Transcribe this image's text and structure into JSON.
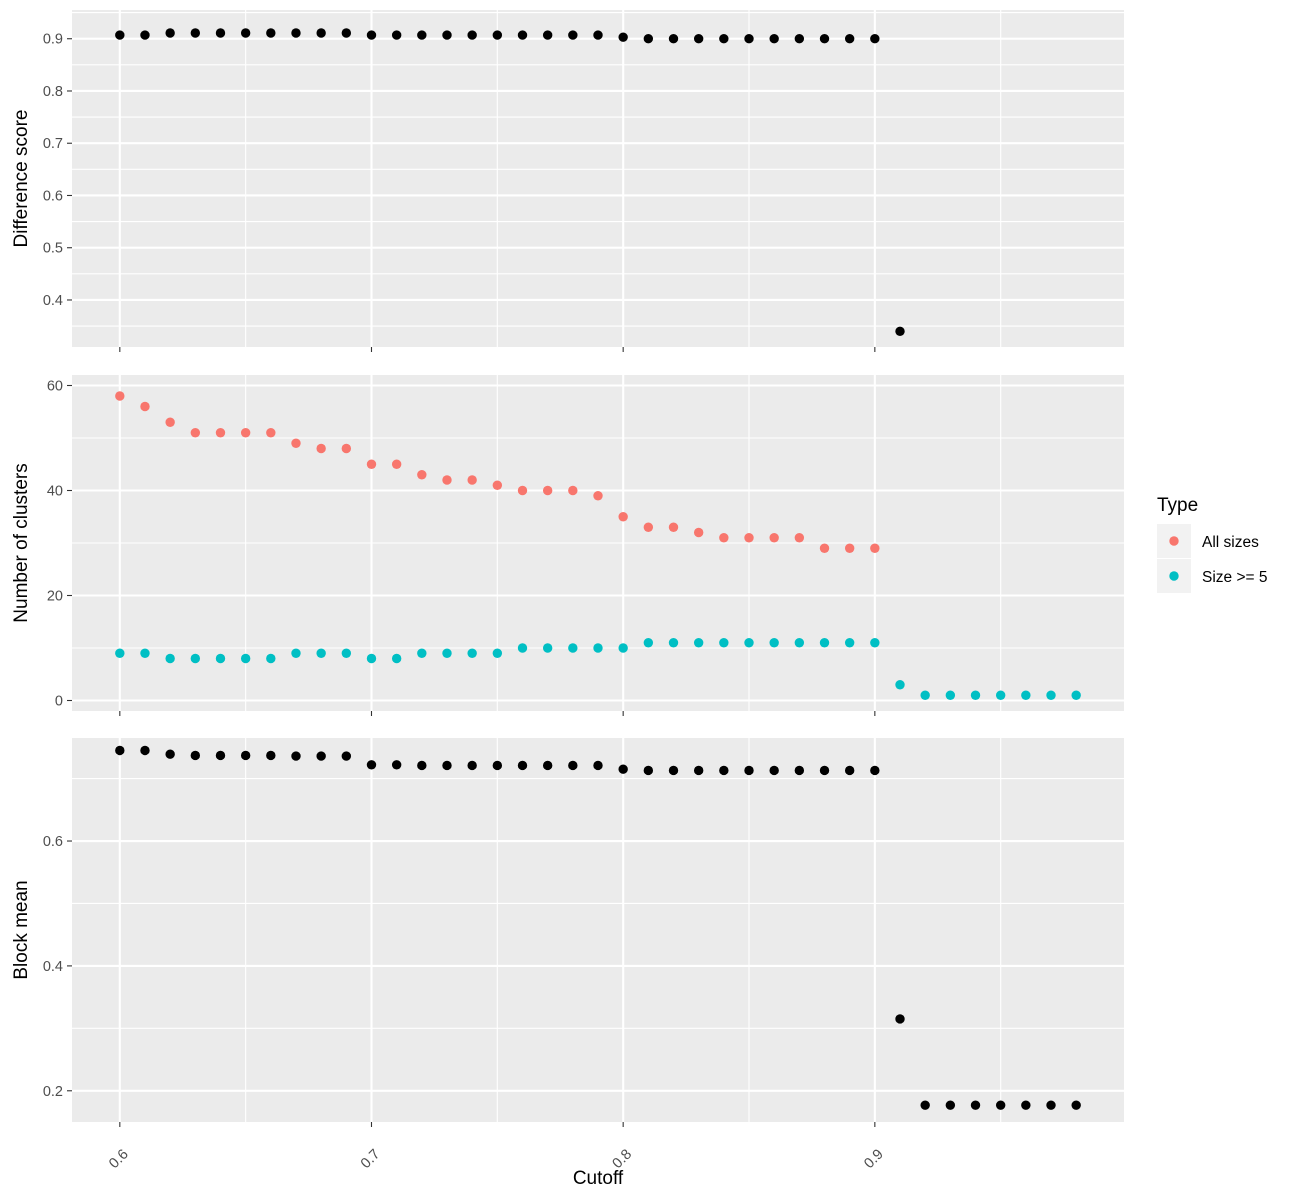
{
  "chart_data": {
    "type": "scatter",
    "layout": "three vertically stacked panels sharing the x axis",
    "xlabel": "Cutoff",
    "x_ticks": [
      "0.6",
      "0.7",
      "0.8",
      "0.9"
    ],
    "xlim": [
      0.581,
      0.999
    ],
    "grid": true,
    "background": "#ebebeb",
    "legend": {
      "title": "Type",
      "placement": "right",
      "entries": [
        {
          "label": "All sizes",
          "color": "#f8766d"
        },
        {
          "label": "Size >= 5",
          "color": "#00bfc4"
        }
      ]
    },
    "panels": [
      {
        "ylabel": "Difference score",
        "ylim": [
          0.31,
          0.955
        ],
        "y_ticks": [
          "0.4",
          "0.5",
          "0.6",
          "0.7",
          "0.8",
          "0.9"
        ],
        "series": [
          {
            "color": "#000000",
            "x": [
              0.6,
              0.61,
              0.62,
              0.63,
              0.64,
              0.65,
              0.66,
              0.67,
              0.68,
              0.69,
              0.7,
              0.71,
              0.72,
              0.73,
              0.74,
              0.75,
              0.76,
              0.77,
              0.78,
              0.79,
              0.8,
              0.81,
              0.82,
              0.83,
              0.84,
              0.85,
              0.86,
              0.87,
              0.88,
              0.89,
              0.9,
              0.91
            ],
            "y": [
              0.907,
              0.907,
              0.911,
              0.911,
              0.911,
              0.911,
              0.911,
              0.911,
              0.911,
              0.911,
              0.907,
              0.907,
              0.907,
              0.907,
              0.907,
              0.907,
              0.907,
              0.907,
              0.907,
              0.907,
              0.903,
              0.9,
              0.9,
              0.9,
              0.9,
              0.9,
              0.9,
              0.9,
              0.9,
              0.9,
              0.9,
              0.34
            ]
          }
        ]
      },
      {
        "ylabel": "Number of clusters",
        "ylim": [
          -2,
          62
        ],
        "y_ticks": [
          "0",
          "20",
          "40",
          "60"
        ],
        "series": [
          {
            "name": "All sizes",
            "color": "#f8766d",
            "x": [
              0.6,
              0.61,
              0.62,
              0.63,
              0.64,
              0.65,
              0.66,
              0.67,
              0.68,
              0.69,
              0.7,
              0.71,
              0.72,
              0.73,
              0.74,
              0.75,
              0.76,
              0.77,
              0.78,
              0.79,
              0.8,
              0.81,
              0.82,
              0.83,
              0.84,
              0.85,
              0.86,
              0.87,
              0.88,
              0.89,
              0.9
            ],
            "y": [
              58,
              56,
              53,
              51,
              51,
              51,
              51,
              49,
              48,
              48,
              45,
              45,
              43,
              42,
              42,
              41,
              40,
              40,
              40,
              39,
              35,
              33,
              33,
              32,
              31,
              31,
              31,
              31,
              29,
              29,
              29
            ]
          },
          {
            "name": "Size >= 5",
            "color": "#00bfc4",
            "x": [
              0.6,
              0.61,
              0.62,
              0.63,
              0.64,
              0.65,
              0.66,
              0.67,
              0.68,
              0.69,
              0.7,
              0.71,
              0.72,
              0.73,
              0.74,
              0.75,
              0.76,
              0.77,
              0.78,
              0.79,
              0.8,
              0.81,
              0.82,
              0.83,
              0.84,
              0.85,
              0.86,
              0.87,
              0.88,
              0.89,
              0.9,
              0.91,
              0.92,
              0.93,
              0.94,
              0.95,
              0.96,
              0.97,
              0.98
            ],
            "y": [
              9,
              9,
              8,
              8,
              8,
              8,
              8,
              9,
              9,
              9,
              8,
              8,
              9,
              9,
              9,
              9,
              10,
              10,
              10,
              10,
              10,
              11,
              11,
              11,
              11,
              11,
              11,
              11,
              11,
              11,
              11,
              3,
              1,
              1,
              1,
              1,
              1,
              1,
              1
            ]
          }
        ]
      },
      {
        "ylabel": "Block mean",
        "ylim": [
          0.15,
          0.765
        ],
        "y_ticks": [
          "0.2",
          "0.4",
          "0.6"
        ],
        "series": [
          {
            "color": "#000000",
            "x": [
              0.6,
              0.61,
              0.62,
              0.63,
              0.64,
              0.65,
              0.66,
              0.67,
              0.68,
              0.69,
              0.7,
              0.71,
              0.72,
              0.73,
              0.74,
              0.75,
              0.76,
              0.77,
              0.78,
              0.79,
              0.8,
              0.81,
              0.82,
              0.83,
              0.84,
              0.85,
              0.86,
              0.87,
              0.88,
              0.89,
              0.9,
              0.91,
              0.92,
              0.93,
              0.94,
              0.95,
              0.96,
              0.97,
              0.98
            ],
            "y": [
              0.745,
              0.745,
              0.739,
              0.737,
              0.737,
              0.737,
              0.737,
              0.736,
              0.736,
              0.736,
              0.722,
              0.722,
              0.721,
              0.721,
              0.721,
              0.721,
              0.721,
              0.721,
              0.721,
              0.721,
              0.715,
              0.713,
              0.713,
              0.713,
              0.713,
              0.713,
              0.713,
              0.713,
              0.713,
              0.713,
              0.713,
              0.315,
              0.177,
              0.177,
              0.177,
              0.177,
              0.177,
              0.177,
              0.177
            ]
          }
        ]
      }
    ]
  }
}
